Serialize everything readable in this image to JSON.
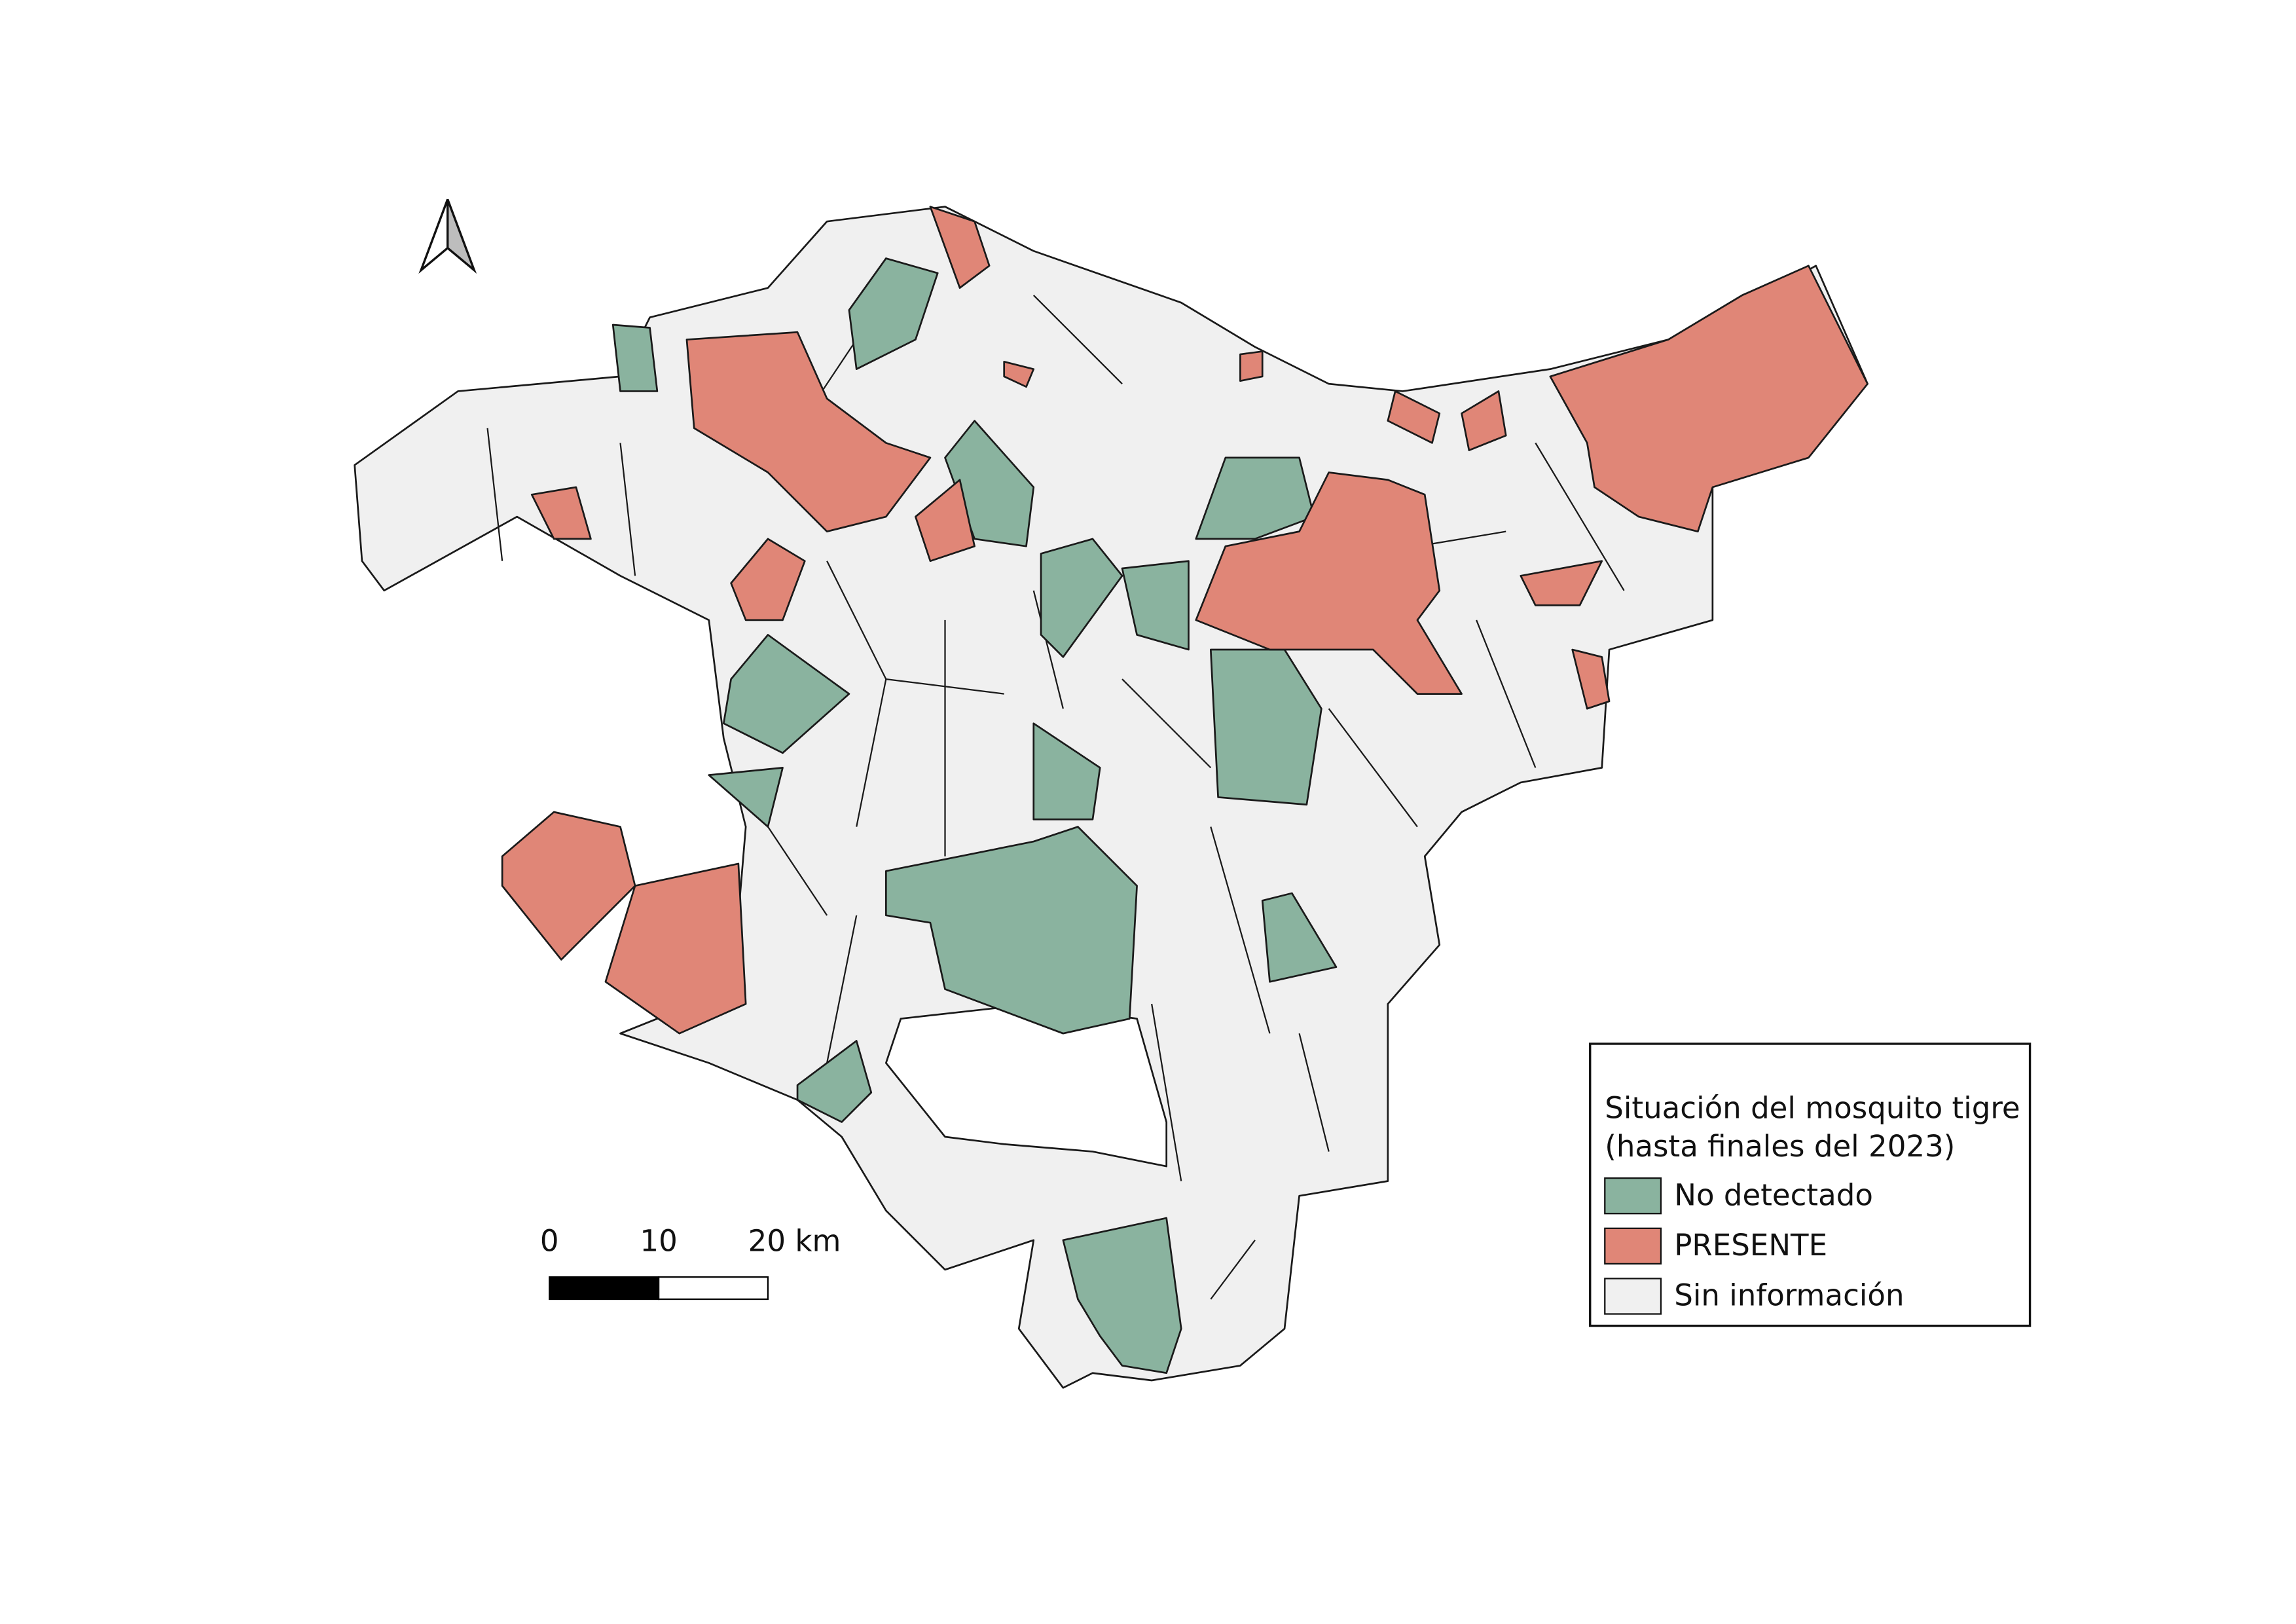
{
  "legend": {
    "title": [
      "Situación del mosquito tigre",
      "(hasta finales del 2023)"
    ],
    "items": [
      {
        "label": "No detectado",
        "color": "#8ab39f"
      },
      {
        "label": "PRESENTE",
        "color": "#e08677"
      },
      {
        "label": "Sin información",
        "color": "#f0f0f0"
      }
    ]
  },
  "scale_bar": {
    "labels": [
      "0",
      "10",
      "20 km"
    ]
  }
}
